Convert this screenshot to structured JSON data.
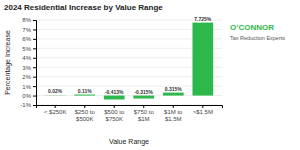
{
  "chart_data": {
    "type": "bar",
    "title": "2024 Residential Increase by Value Range",
    "xlabel": "Value Range",
    "ylabel": "Percentage Increase",
    "categories": [
      "< $250K",
      "$250 to\n$500K",
      "$500 to\n$750K",
      "$750 to\n$1M",
      "$1M to\n$1.5M",
      ">$1.5M"
    ],
    "values": [
      0.02,
      0.11,
      -0.413,
      -0.315,
      0.315,
      7.725
    ],
    "value_labels": [
      "0.02%",
      "0.11%",
      "-0.413%",
      "-0.315%",
      "0.315%",
      "7.725%"
    ],
    "data_labels": true,
    "color": "#2db84b",
    "ylim": [
      -1,
      8
    ],
    "yticks": [
      {
        "value": -1,
        "label": "-1%"
      },
      {
        "value": 0,
        "label": "0%"
      },
      {
        "value": 1,
        "label": "1%"
      },
      {
        "value": 2,
        "label": "2%"
      },
      {
        "value": 3,
        "label": "3%"
      },
      {
        "value": 4,
        "label": "4%"
      },
      {
        "value": 5,
        "label": "5%"
      },
      {
        "value": 6,
        "label": "6%"
      },
      {
        "value": 7,
        "label": "7%"
      },
      {
        "value": 8,
        "label": "8%"
      }
    ],
    "grid": true,
    "annotations": [
      "O’CONNOR",
      "Tax Reduction Experts"
    ]
  }
}
